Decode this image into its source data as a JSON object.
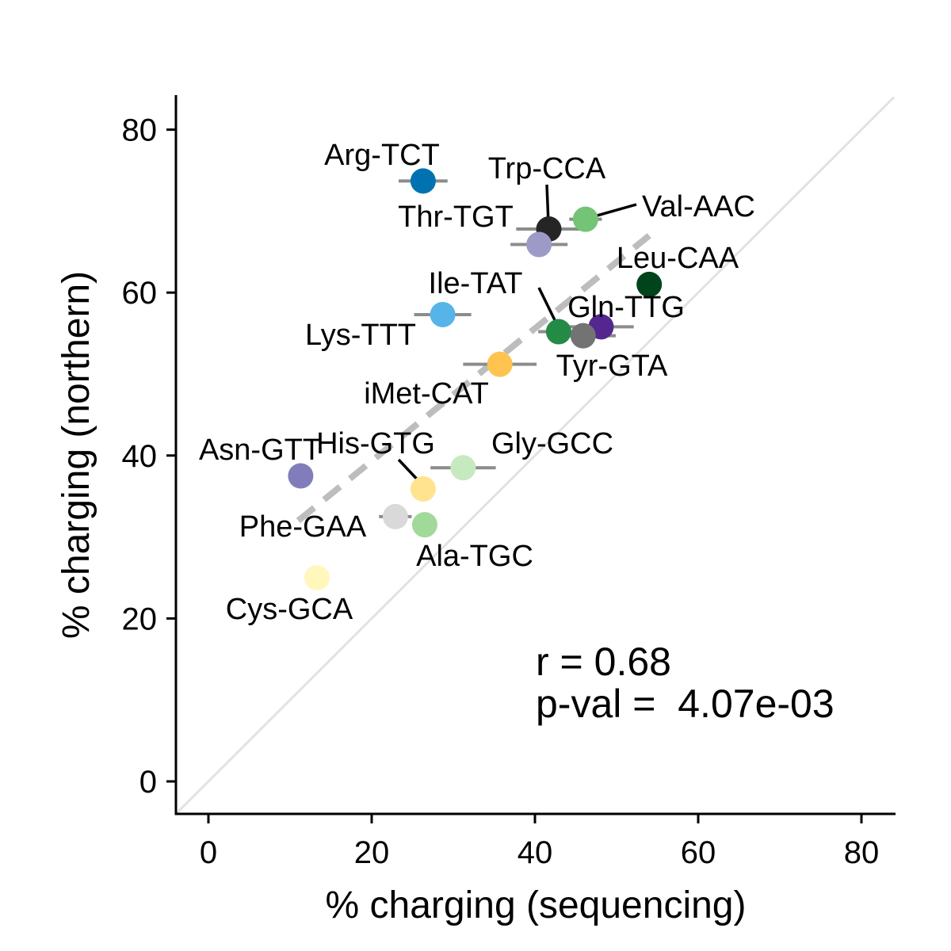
{
  "chart_data": {
    "type": "scatter",
    "xlabel": "% charging (sequencing)",
    "ylabel": "% charging (northern)",
    "xlim": [
      -4,
      84
    ],
    "ylim": [
      -4,
      84
    ],
    "x_ticks": [
      0,
      20,
      40,
      60,
      80
    ],
    "y_ticks": [
      0,
      20,
      40,
      60,
      80
    ],
    "grid": false,
    "identity_line": true,
    "regression_line": {
      "x": [
        11,
        54
      ],
      "y": [
        32,
        67
      ]
    },
    "annotation": {
      "r_text": "r = 0.68",
      "p_text": "p-val =  4.07e-03"
    },
    "points": [
      {
        "name": "Arg-TCT",
        "x": 26.3,
        "y": 73.7,
        "xerr": 3.0,
        "color": "#0072B2"
      },
      {
        "name": "Trp-CCA",
        "x": 41.7,
        "y": 67.8,
        "xerr": 4.0,
        "color": "#252525"
      },
      {
        "name": "Val-AAC",
        "x": 46.2,
        "y": 69.0,
        "xerr": 2.0,
        "color": "#74C476"
      },
      {
        "name": "Thr-TGT",
        "x": 40.5,
        "y": 65.9,
        "xerr": 3.5,
        "color": "#9E9AC8"
      },
      {
        "name": "Leu-CAA",
        "x": 54.0,
        "y": 61.0,
        "xerr": 0.5,
        "color": "#00441B"
      },
      {
        "name": "Lys-TTT",
        "x": 28.7,
        "y": 57.3,
        "xerr": 3.5,
        "color": "#56B4E9"
      },
      {
        "name": "Ile-TAT",
        "x": 42.9,
        "y": 55.2,
        "xerr": 2.5,
        "color": "#238B45"
      },
      {
        "name": "Gln-TTG",
        "x": 48.1,
        "y": 55.8,
        "xerr": 4.0,
        "color": "#54278F"
      },
      {
        "name": "Tyr-GTA",
        "x": 45.9,
        "y": 54.7,
        "xerr": 4.0,
        "color": "#737373"
      },
      {
        "name": "iMet-CAT",
        "x": 35.7,
        "y": 51.2,
        "xerr": 4.5,
        "color": "#FEC44F"
      },
      {
        "name": "Gly-GCC",
        "x": 31.2,
        "y": 38.5,
        "xerr": 4.0,
        "color": "#C7E9C0"
      },
      {
        "name": "Asn-GTT",
        "x": 11.3,
        "y": 37.5,
        "xerr": 1.5,
        "color": "#807DBA"
      },
      {
        "name": "His-GTG",
        "x": 26.3,
        "y": 35.9,
        "xerr": 1.5,
        "color": "#FFE38F"
      },
      {
        "name": "Phe-GAA",
        "x": 22.9,
        "y": 32.5,
        "xerr": 2.0,
        "color": "#D9D9D9"
      },
      {
        "name": "Ala-TGC",
        "x": 26.5,
        "y": 31.5,
        "xerr": 0.8,
        "color": "#A1D99B"
      },
      {
        "name": "Cys-GCA",
        "x": 13.3,
        "y": 25.0,
        "xerr": 1.5,
        "color": "#FFF7BC"
      }
    ]
  }
}
